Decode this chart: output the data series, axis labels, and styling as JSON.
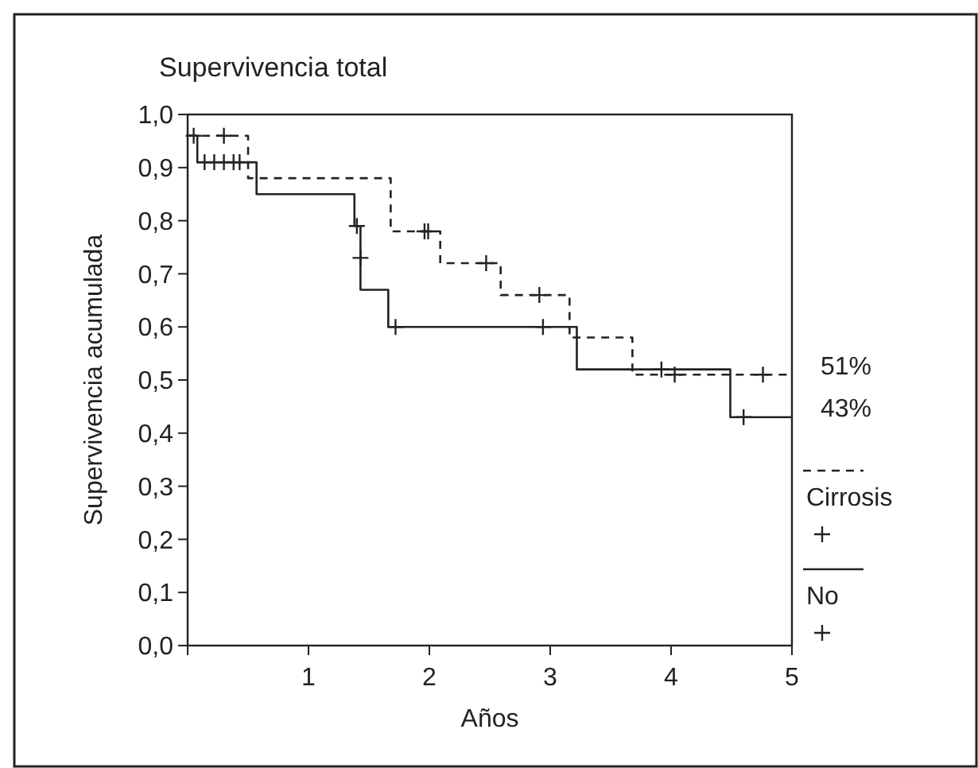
{
  "chart_data": {
    "type": "step",
    "title": "Supervivencia total",
    "xlabel": "Años",
    "ylabel": "Supervivencia acumulada",
    "xlim": [
      0,
      5
    ],
    "ylim": [
      0,
      1
    ],
    "xticks": [
      {
        "value": 0,
        "label": null
      },
      1,
      2,
      3,
      4,
      5
    ],
    "yticks": [
      {
        "value": 0,
        "label": "0,0"
      },
      {
        "value": 0.1,
        "label": "0,1"
      },
      {
        "value": 0.2,
        "label": "0,2"
      },
      {
        "value": 0.3,
        "label": "0,3"
      },
      {
        "value": 0.4,
        "label": "0,4"
      },
      {
        "value": 0.5,
        "label": "0,5"
      },
      {
        "value": 0.6,
        "label": "0,6"
      },
      {
        "value": 0.7,
        "label": "0,7"
      },
      {
        "value": 0.8,
        "label": "0,8"
      },
      {
        "value": 0.9,
        "label": "0,9"
      },
      {
        "value": 1,
        "label": "1,0"
      }
    ],
    "grid": false,
    "legend": "right",
    "series": [
      {
        "name": "Cirrosis",
        "line_style": "dashed",
        "color": "#222222",
        "x": [
          0,
          0.5,
          1.68,
          2.09,
          2.59,
          3.16,
          3.68,
          5
        ],
        "values": [
          0.96,
          0.88,
          0.78,
          0.72,
          0.66,
          0.58,
          0.51,
          0.51
        ]
      },
      {
        "name": "No",
        "line_style": "solid",
        "color": "#222222",
        "x": [
          0,
          0.08,
          0.57,
          1.38,
          1.43,
          1.66,
          3.22,
          4.49,
          5
        ],
        "values": [
          0.96,
          0.91,
          0.85,
          0.79,
          0.67,
          0.6,
          0.52,
          0.43,
          0.43
        ]
      },
      {
        "type": "scatter",
        "marker": "cross",
        "color": "#222222",
        "x": [
          0.05,
          0.3,
          1.96,
          1.99,
          2.47,
          2.91,
          4.03,
          4.76
        ],
        "values": [
          0.96,
          0.96,
          0.78,
          0.78,
          0.72,
          0.66,
          0.51,
          0.51
        ]
      },
      {
        "type": "scatter",
        "marker": "cross",
        "color": "#222222",
        "x": [
          0.14,
          0.22,
          0.3,
          0.38,
          0.43,
          1.4,
          1.43,
          1.72,
          2.94,
          3.92,
          4.6
        ],
        "values": [
          0.91,
          0.91,
          0.91,
          0.91,
          0.91,
          0.79,
          0.73,
          0.6,
          0.6,
          0.52,
          0.43
        ]
      }
    ],
    "annotations": [
      {
        "text": "51%",
        "x": 5,
        "y": 0.51
      },
      {
        "text": "43%",
        "x": 5,
        "y": 0.43
      }
    ]
  }
}
